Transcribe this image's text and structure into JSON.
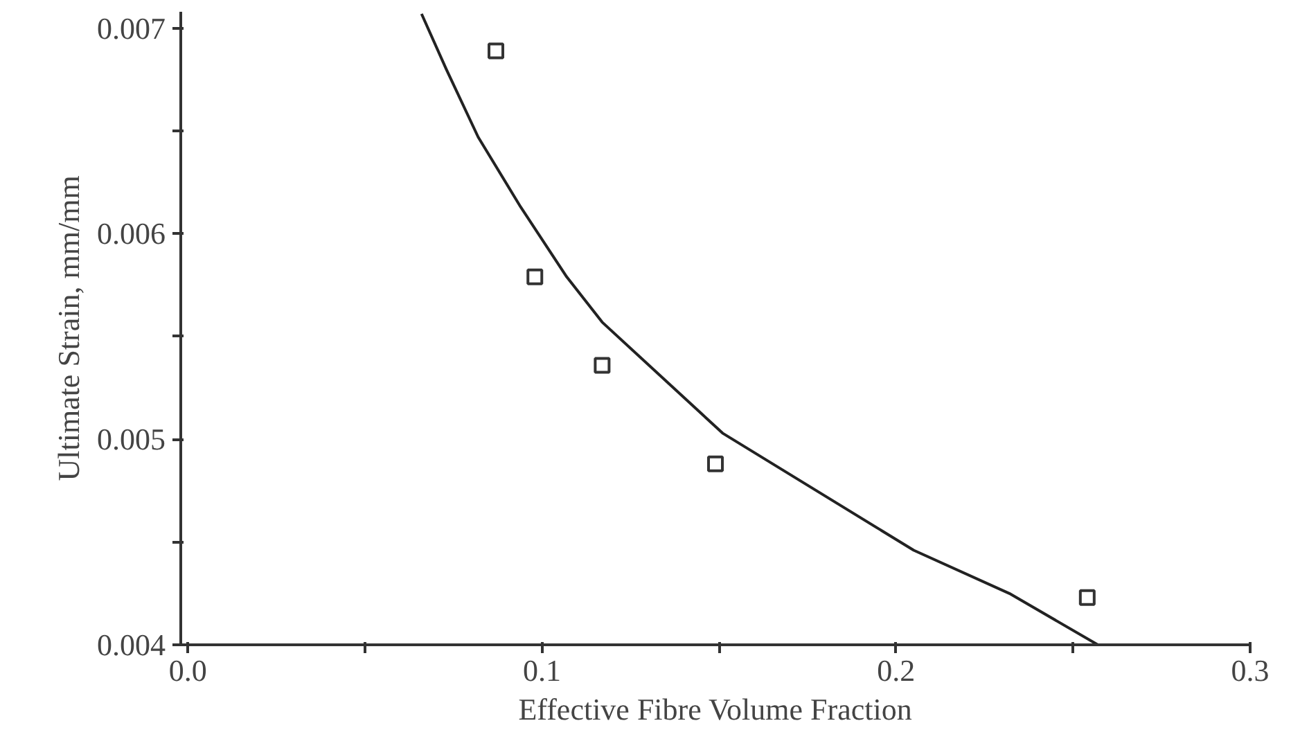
{
  "chart_data": {
    "type": "scatter",
    "xlabel": "Effective Fibre Volume Fraction",
    "ylabel": "Ultimate Strain, mm/mm",
    "xlim": [
      -0.002,
      0.3
    ],
    "ylim": [
      0.004,
      0.00708
    ],
    "xticks": [
      {
        "value": 0,
        "label": "0.0"
      },
      {
        "value": 0.05,
        "label": null
      },
      {
        "value": 0.1,
        "label": "0.1"
      },
      {
        "value": 0.15,
        "label": null
      },
      {
        "value": 0.2,
        "label": "0.2"
      },
      {
        "value": 0.25,
        "label": null
      },
      {
        "value": 0.3,
        "label": "0.3"
      }
    ],
    "yticks": [
      0.004,
      {
        "value": 0.0045,
        "label": null
      },
      0.005,
      {
        "value": 0.0055,
        "label": null
      },
      0.006,
      {
        "value": 0.0065,
        "label": null
      },
      0.007
    ],
    "grid": false,
    "series": [
      {
        "marker": "square",
        "color": "#333333",
        "x": [
          0.087,
          0.098,
          0.117,
          0.149,
          0.254
        ],
        "values": [
          0.00689,
          0.00579,
          0.00536,
          0.00488,
          0.00423
        ]
      },
      {
        "type": "line",
        "line_style": "solid",
        "marker": "none",
        "color": "#222222",
        "x": [
          0.066,
          0.073,
          0.082,
          0.094,
          0.107,
          0.117,
          0.151,
          0.205,
          0.232,
          0.257
        ],
        "values": [
          0.00707,
          0.0068,
          0.00647,
          0.00613,
          0.00579,
          0.00557,
          0.00503,
          0.00446,
          0.00425,
          0.004
        ]
      }
    ]
  }
}
